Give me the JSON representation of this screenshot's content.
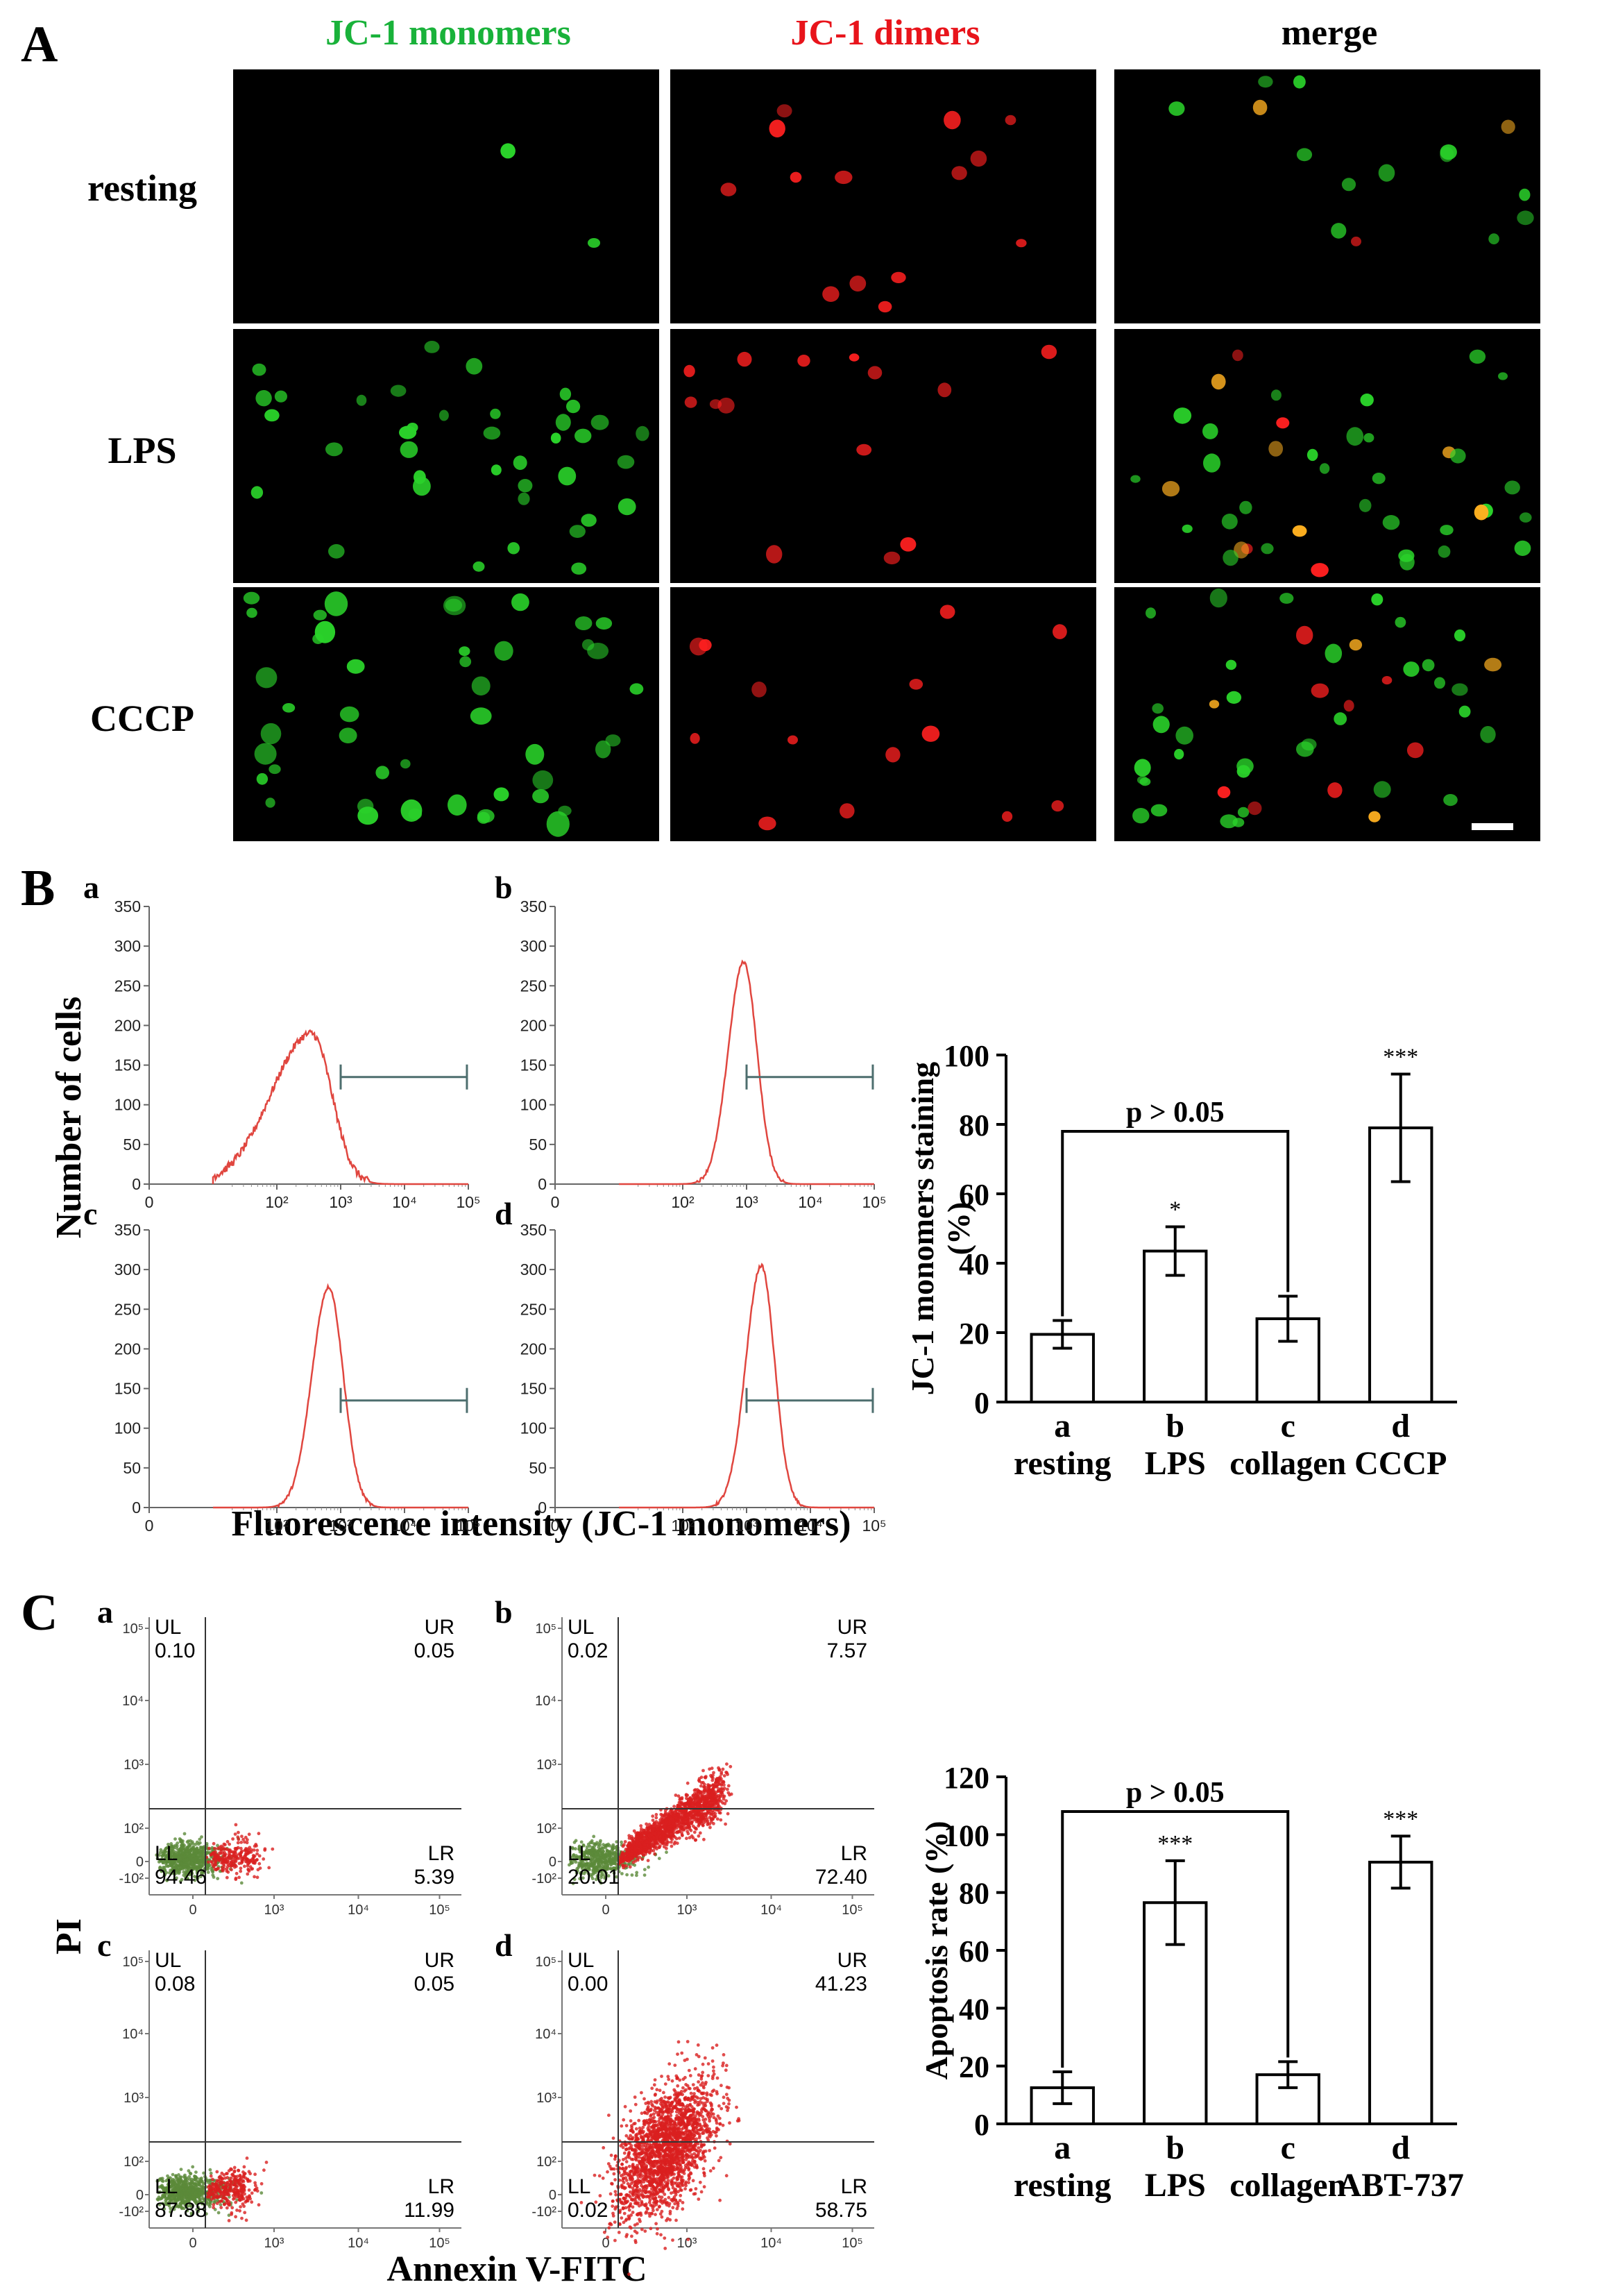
{
  "panels": {
    "A": "A",
    "B": "B",
    "C": "C"
  },
  "panelA": {
    "column_headers": [
      "JC-1 monomers",
      "JC-1 dimers",
      "merge"
    ],
    "header_colors": [
      "#19b23a",
      "#e8141b",
      "#000000"
    ],
    "row_labels": [
      "resting",
      "LPS",
      "CCCP"
    ]
  },
  "sublabels": {
    "a": "a",
    "b": "b",
    "c": "c",
    "d": "d"
  },
  "panelB": {
    "ylabel": "Number of cells",
    "xlabel": "Fluorescence intensity (JC-1 monomers)"
  },
  "panelC": {
    "ylabel": "PI",
    "xlabel": "Annexin V-FITC",
    "plots": [
      {
        "id": "a",
        "UL": "0.10",
        "UR": "0.05",
        "LL": "94.46",
        "LR": "5.39"
      },
      {
        "id": "b",
        "UL": "0.02",
        "UR": "7.57",
        "LL": "20.01",
        "LR": "72.40"
      },
      {
        "id": "c",
        "UL": "0.08",
        "UR": "0.05",
        "LL": "87.88",
        "LR": "11.99"
      },
      {
        "id": "d",
        "UL": "0.00",
        "UR": "41.23",
        "LL": "0.02",
        "LR": "58.75"
      }
    ],
    "quadrant_names": {
      "UL": "UL",
      "UR": "UR",
      "LL": "LL",
      "LR": "LR"
    }
  },
  "colors": {
    "histogram_line": "#e0463f",
    "gate_line": "#4d6e6e",
    "green_cells": "#5b8a3a",
    "red_cells": "#d91f1f"
  },
  "chart_data": [
    {
      "type": "line",
      "panel": "B-histograms",
      "ylabel": "Number of cells",
      "xlabel": "Fluorescence intensity (JC-1 monomers)",
      "x_scale": "log",
      "xlim": [
        1,
        100000
      ],
      "ylim": [
        0,
        350
      ],
      "yticks": [
        0,
        50,
        100,
        150,
        200,
        250,
        300,
        350
      ],
      "xticks": [
        "0",
        "10²",
        "10³",
        "10⁴",
        "10⁵"
      ],
      "series": [
        {
          "name": "a",
          "peak_x": 350,
          "peak_y": 190,
          "sigma_log": 0.42
        },
        {
          "name": "b",
          "peak_x": 900,
          "peak_y": 280,
          "sigma_log": 0.22
        },
        {
          "name": "c",
          "peak_x": 650,
          "peak_y": 278,
          "sigma_log": 0.24
        },
        {
          "name": "d",
          "peak_x": 1700,
          "peak_y": 305,
          "sigma_log": 0.22
        }
      ],
      "gate": [
        1000,
        95000
      ]
    },
    {
      "type": "bar",
      "panel": "B-bar",
      "categories": [
        "a",
        "b",
        "c",
        "d"
      ],
      "category_names": [
        "resting",
        "LPS",
        "collagen",
        "CCCP"
      ],
      "values": [
        19.5,
        43.5,
        24,
        79
      ],
      "errors": [
        4,
        7,
        6.5,
        15.5
      ],
      "significance": [
        "",
        "*",
        "",
        "***"
      ],
      "bracket": {
        "from": "a",
        "to": "c",
        "label": "p > 0.05"
      },
      "ylabel": "JC-1 monomers staining (%)",
      "ylim": [
        0,
        100
      ],
      "yticks": [
        0,
        20,
        40,
        60,
        80,
        100
      ]
    },
    {
      "type": "bar",
      "panel": "C-bar",
      "categories": [
        "a",
        "b",
        "c",
        "d"
      ],
      "category_names": [
        "resting",
        "LPS",
        "collagen",
        "ABT-737"
      ],
      "values": [
        12.5,
        76.5,
        17,
        90.5
      ],
      "errors": [
        5.5,
        14.5,
        4.5,
        9
      ],
      "significance": [
        "",
        "***",
        "",
        "***"
      ],
      "bracket": {
        "from": "a",
        "to": "c",
        "label": "p > 0.05"
      },
      "ylabel": "Apoptosis rate (%)",
      "ylim": [
        0,
        120
      ],
      "yticks": [
        0,
        20,
        40,
        60,
        80,
        100,
        120
      ]
    }
  ]
}
